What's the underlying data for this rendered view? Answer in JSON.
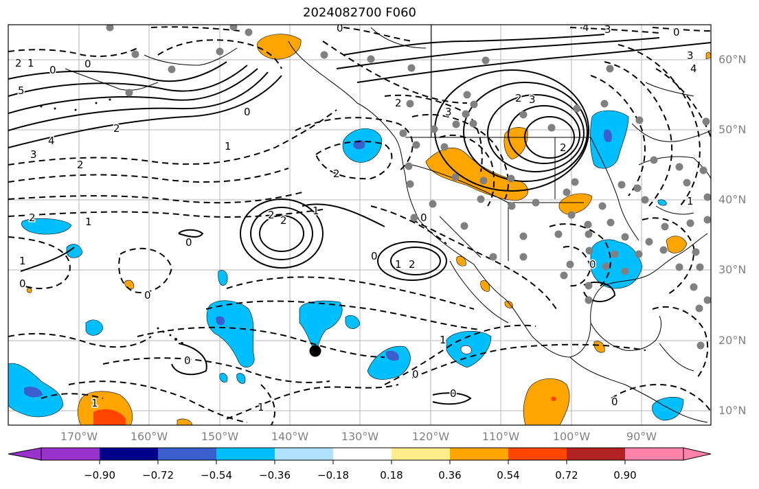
{
  "title": "2024082700 F060",
  "lat_labels": [
    "60°N",
    "50°N",
    "40°N",
    "30°N",
    "20°N",
    "10°N"
  ],
  "lon_labels": [
    "170°W",
    "160°W",
    "150°W",
    "140°W",
    "130°W",
    "120°W",
    "110°W",
    "100°W",
    "90°W"
  ],
  "colorbar": {
    "ticks": [
      "−0.90",
      "−0.72",
      "−0.54",
      "−0.36",
      "−0.18",
      "0.18",
      "0.36",
      "0.54",
      "0.72",
      "0.90"
    ],
    "colors": [
      "#9a32cd",
      "#00008b",
      "#3a5fcd",
      "#00bfff",
      "#b0e2ff",
      "#ffffff",
      "#ffec8b",
      "#ffa500",
      "#ff4500",
      "#b22222",
      "#ff82ab"
    ]
  },
  "contour_labels": [
    "0",
    "1",
    "2",
    "3",
    "4",
    "5"
  ],
  "fill_colors": {
    "neg_light": "#b0e2ff",
    "neg_mid": "#00bfff",
    "neg_strong": "#3a5fcd",
    "pos_mid": "#ffa500",
    "pos_strong": "#ff4500"
  }
}
